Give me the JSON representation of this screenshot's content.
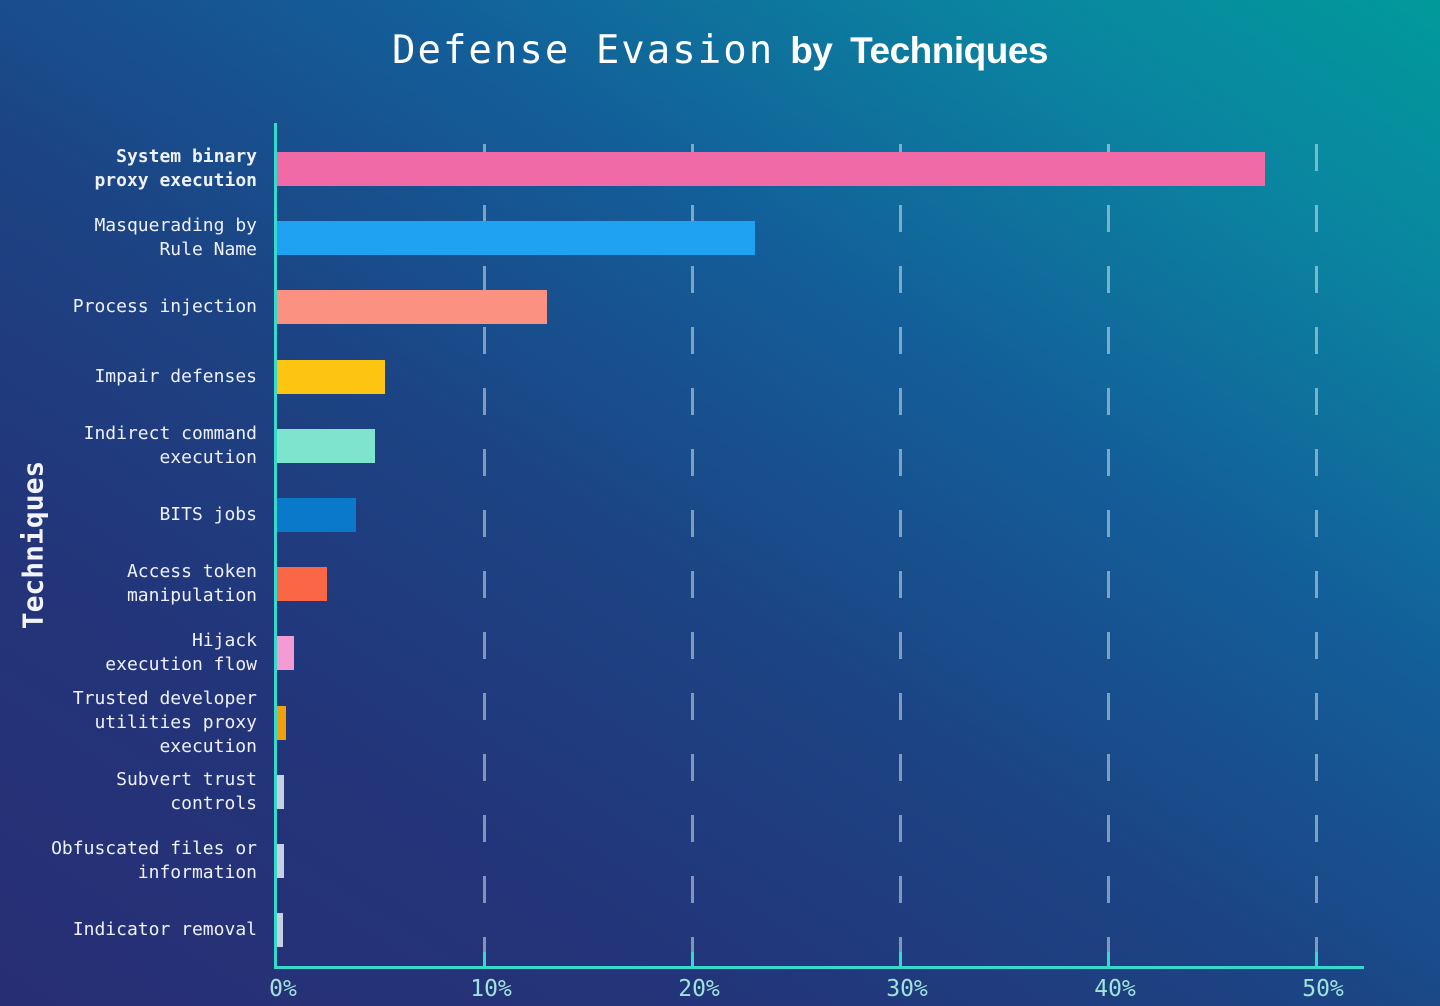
{
  "title": {
    "main": "Defense Evasion",
    "suffix": "by Techniques"
  },
  "colors": {
    "background_start": "#282e74",
    "background_end": "#019a9b",
    "axis": "#35dacd",
    "tick_label": "#9fe3da",
    "gridline": "rgba(226,240,248,0.5)",
    "category_text": "#eef1fa",
    "title_text": "#ffffff"
  },
  "chart_data": {
    "type": "bar",
    "orientation": "horizontal",
    "title": "Defense Evasion by Techniques",
    "xlabel": "",
    "ylabel": "Techniques",
    "xlim": [
      0,
      52.3
    ],
    "x_tick_values": [
      0,
      10,
      20,
      30,
      40,
      50
    ],
    "x_tick_labels": [
      "0%",
      "10%",
      "20%",
      "30%",
      "40%",
      "50%"
    ],
    "grid": {
      "axis": "x",
      "style": "dashed"
    },
    "legend": "none",
    "highlight_index": 0,
    "categories": [
      "System binary proxy execution",
      "Masquerading by Rule Name",
      "Process injection",
      "Impair defenses",
      "Indirect command execution",
      "BITS jobs",
      "Access token manipulation",
      "Hijack execution flow",
      "Trusted developer utilities proxy execution",
      "Subvert trust controls",
      "Obfuscated files or information",
      "Indicator removal"
    ],
    "label_lines": [
      [
        "System binary",
        "proxy execution"
      ],
      [
        "Masquerading by",
        "Rule Name"
      ],
      [
        "Process injection"
      ],
      [
        "Impair defenses"
      ],
      [
        "Indirect command",
        "execution"
      ],
      [
        "BITS jobs"
      ],
      [
        "Access token",
        "manipulation"
      ],
      [
        "Hijack",
        "execution flow"
      ],
      [
        "Trusted developer",
        "utilities proxy",
        "execution"
      ],
      [
        "Subvert trust",
        "controls"
      ],
      [
        "Obfuscated files or",
        "information"
      ],
      [
        "Indicator removal"
      ]
    ],
    "values": [
      47.5,
      23.0,
      13.0,
      5.2,
      4.7,
      3.8,
      2.4,
      0.8,
      0.45,
      0.35,
      0.35,
      0.3
    ],
    "bar_colors": [
      "#ef6aa7",
      "#1ea2f1",
      "#fb9180",
      "#fdc412",
      "#7fe4cd",
      "#0b79ca",
      "#f96746",
      "#f39bd2",
      "#efa00b",
      "#c9cfe2",
      "#c9cfe2",
      "#c9cfe2"
    ]
  }
}
